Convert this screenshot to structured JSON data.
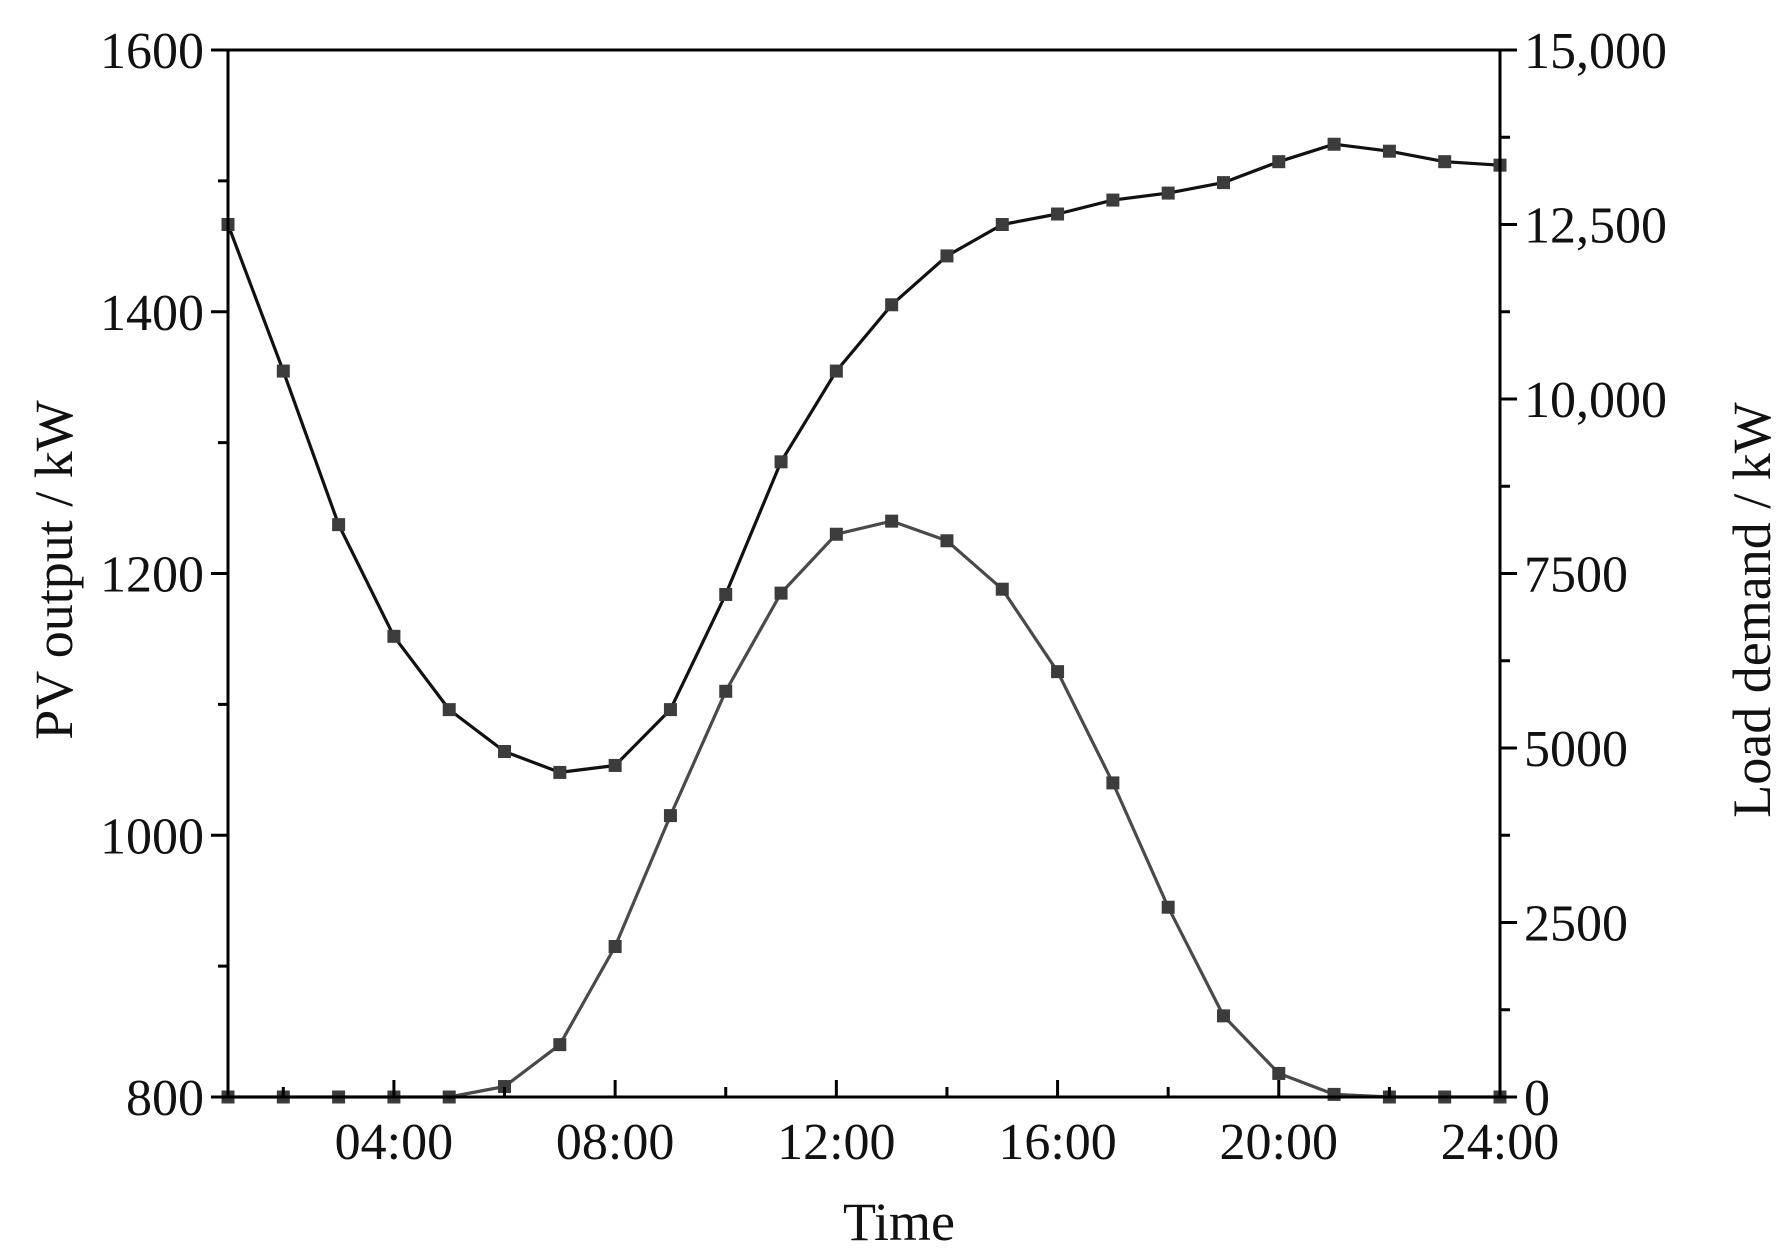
{
  "chart_data": {
    "type": "line",
    "xlabel": "Time",
    "ylabel_left": "PV output / kW",
    "ylabel_right": "Load demand / kW",
    "x_hours": [
      1,
      2,
      3,
      4,
      5,
      6,
      7,
      8,
      9,
      10,
      11,
      12,
      13,
      14,
      15,
      16,
      17,
      18,
      19,
      20,
      21,
      22,
      23,
      24
    ],
    "xlim": [
      1,
      24
    ],
    "x_ticks": [
      {
        "hour": 4,
        "label": "04:00"
      },
      {
        "hour": 8,
        "label": "08:00"
      },
      {
        "hour": 12,
        "label": "12:00"
      },
      {
        "hour": 16,
        "label": "16:00"
      },
      {
        "hour": 20,
        "label": "20:00"
      },
      {
        "hour": 24,
        "label": "24:00"
      }
    ],
    "y_left": {
      "lim": [
        800,
        1600
      ],
      "ticks": [
        {
          "value": 800,
          "label": "800"
        },
        {
          "value": 1000,
          "label": "1000"
        },
        {
          "value": 1200,
          "label": "1200"
        },
        {
          "value": 1400,
          "label": "1400"
        },
        {
          "value": 1600,
          "label": "1600"
        }
      ],
      "minor_step": 100
    },
    "y_right": {
      "lim": [
        0,
        15000
      ],
      "ticks": [
        {
          "value": 0,
          "label": "0"
        },
        {
          "value": 2500,
          "label": "2500"
        },
        {
          "value": 5000,
          "label": "5000"
        },
        {
          "value": 7500,
          "label": "7500"
        },
        {
          "value": 10000,
          "label": "10,000"
        },
        {
          "value": 12500,
          "label": "12,500"
        },
        {
          "value": 15000,
          "label": "15,000"
        }
      ],
      "minor_step": 1250
    },
    "series": [
      {
        "axis": "right",
        "color": "#111111",
        "values": [
          12500,
          10400,
          8200,
          6600,
          5550,
          4950,
          4650,
          4750,
          5550,
          7200,
          9100,
          10400,
          11350,
          12050,
          12500,
          12650,
          12850,
          12950,
          13100,
          13400,
          13650,
          13550,
          13400,
          13350
        ]
      },
      {
        "axis": "left",
        "color": "#4a4a4a",
        "values": [
          800,
          800,
          800,
          800,
          800,
          808,
          840,
          915,
          1015,
          1110,
          1185,
          1230,
          1240,
          1225,
          1188,
          1125,
          1040,
          945,
          862,
          818,
          802,
          800,
          800,
          800
        ]
      }
    ]
  }
}
